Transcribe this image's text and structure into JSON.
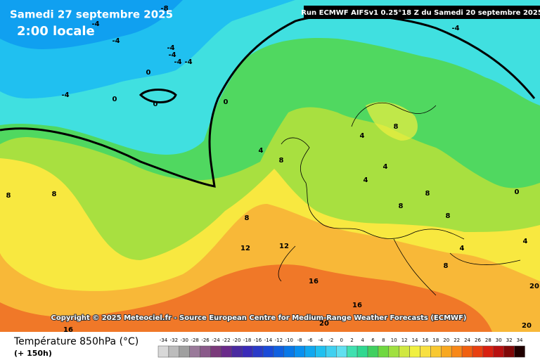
{
  "header": {
    "date": "Samedi 27 septembre 2025",
    "time": "2:00 locale",
    "run": "Run ECMWF AIFSv1 0.25°18 Z du Samedi 20 septembre 2025"
  },
  "copyright": "Copyright © 2025 Meteociel.fr - Source European Centre for Medium-Range Weather Forecasts (ECMWF)",
  "legend": {
    "title": "Température 850hPa (°C)",
    "lead": "(+ 150h)",
    "ticks": [
      -34,
      -32,
      -30,
      -28,
      -26,
      -24,
      -22,
      -20,
      -18,
      -16,
      -14,
      -12,
      -10,
      -8,
      -6,
      -4,
      -2,
      0,
      2,
      4,
      6,
      8,
      10,
      12,
      14,
      16,
      18,
      20,
      22,
      24,
      26,
      28,
      30,
      32,
      34
    ],
    "colors": [
      "#d8d8d8",
      "#bcbcbc",
      "#a0a0a0",
      "#9a7a9a",
      "#8a5a8a",
      "#7a3a7a",
      "#6a2a8a",
      "#4a2aa0",
      "#3a2ab8",
      "#2a3ac8",
      "#1a4ad8",
      "#1060e0",
      "#0878e8",
      "#0890f0",
      "#10a8f0",
      "#20c0f0",
      "#40d0f0",
      "#60e0f0",
      "#40e0b0",
      "#30d890",
      "#40d060",
      "#70d840",
      "#a0e040",
      "#d0e840",
      "#f0f040",
      "#f8e040",
      "#f8c830",
      "#f8a820",
      "#f88818",
      "#f06010",
      "#e84010",
      "#d82010",
      "#b81010",
      "#800808",
      "#200000"
    ]
  },
  "contour_labels": [
    -8,
    -4,
    -4,
    -4,
    -4,
    -4,
    -4,
    -4,
    -4,
    0,
    0,
    0,
    0,
    0,
    4,
    8,
    8,
    4,
    4,
    8,
    8,
    8,
    4,
    4,
    8,
    8,
    8,
    8,
    12,
    12,
    16,
    16,
    20,
    20,
    20,
    16,
    4
  ]
}
